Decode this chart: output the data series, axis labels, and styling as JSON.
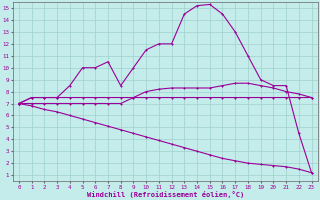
{
  "xlabel": "Windchill (Refroidissement éolien,°C)",
  "background_color": "#c4ecea",
  "grid_color": "#a0d0cc",
  "line_color": "#990099",
  "xlim_min": -0.5,
  "xlim_max": 23.5,
  "ylim_min": 0.5,
  "ylim_max": 15.5,
  "xticks": [
    0,
    1,
    2,
    3,
    4,
    5,
    6,
    7,
    8,
    9,
    10,
    11,
    12,
    13,
    14,
    15,
    16,
    17,
    18,
    19,
    20,
    21,
    22,
    23
  ],
  "yticks": [
    1,
    2,
    3,
    4,
    5,
    6,
    7,
    8,
    9,
    10,
    11,
    12,
    13,
    14,
    15
  ],
  "s1_x": [
    0,
    1,
    2,
    3,
    4,
    5,
    6,
    7,
    8,
    9,
    10,
    11,
    12,
    13,
    14,
    15,
    16,
    17,
    18,
    19,
    20,
    21,
    22,
    23
  ],
  "s1_y": [
    7.0,
    7.5,
    7.5,
    7.5,
    7.5,
    7.5,
    7.5,
    7.5,
    7.5,
    7.5,
    7.5,
    7.5,
    7.5,
    7.5,
    7.5,
    7.5,
    7.5,
    7.5,
    7.5,
    7.5,
    7.5,
    7.5,
    7.5,
    7.5
  ],
  "s2_x": [
    0,
    1,
    2,
    3,
    4,
    5,
    6,
    7,
    8,
    9,
    10,
    11,
    12,
    13,
    14,
    15,
    16,
    17,
    18,
    19,
    20,
    21,
    22,
    23
  ],
  "s2_y": [
    7.0,
    7.0,
    7.0,
    7.0,
    7.0,
    7.0,
    7.0,
    7.0,
    7.0,
    7.5,
    8.0,
    8.2,
    8.3,
    8.3,
    8.3,
    8.3,
    8.5,
    8.7,
    8.7,
    8.5,
    8.3,
    8.0,
    7.8,
    7.5
  ],
  "s3_x": [
    0,
    1,
    2,
    3,
    4,
    5,
    6,
    7,
    8,
    9,
    10,
    11,
    12,
    13,
    14,
    15,
    16,
    17,
    18,
    19,
    20,
    21,
    22,
    23
  ],
  "s3_y": [
    7.0,
    6.8,
    6.5,
    6.3,
    6.0,
    5.7,
    5.4,
    5.1,
    4.8,
    4.5,
    4.2,
    3.9,
    3.6,
    3.3,
    3.0,
    2.7,
    2.4,
    2.2,
    2.0,
    1.9,
    1.8,
    1.7,
    1.5,
    1.2
  ],
  "s4_x": [
    0,
    1,
    2,
    3,
    4,
    5,
    6,
    7,
    8,
    9,
    10,
    11,
    12,
    13,
    14,
    15,
    16,
    17,
    18,
    19,
    20,
    21,
    22,
    23
  ],
  "s4_y": [
    7.0,
    7.5,
    7.5,
    7.5,
    8.5,
    10.0,
    10.0,
    10.5,
    8.5,
    10.0,
    11.5,
    12.0,
    12.0,
    14.5,
    15.2,
    15.3,
    14.5,
    13.0,
    11.0,
    9.0,
    8.5,
    8.5,
    4.5,
    1.2
  ]
}
